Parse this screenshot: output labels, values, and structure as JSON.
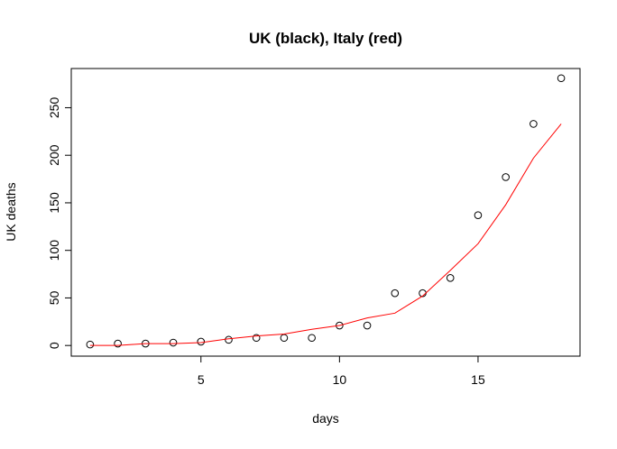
{
  "chart_data": {
    "type": "scatter",
    "title": "UK (black), Italy (red)",
    "xlabel": "days",
    "ylabel": "UK deaths",
    "xlim": [
      0.32,
      18.68
    ],
    "ylim": [
      -11.2,
      291.2
    ],
    "x_ticks": [
      5,
      10,
      15
    ],
    "y_ticks": [
      0,
      50,
      100,
      150,
      200,
      250
    ],
    "grid": false,
    "legend": "none",
    "series": [
      {
        "marker": "open-circle",
        "color": "#000000",
        "x": [
          1,
          2,
          3,
          4,
          5,
          6,
          7,
          8,
          9,
          10,
          11,
          12,
          13,
          14,
          15,
          16,
          17,
          18
        ],
        "y": [
          1,
          2,
          2,
          3,
          4,
          6,
          8,
          8,
          8,
          21,
          21,
          55,
          55,
          71,
          137,
          177,
          233,
          281
        ]
      },
      {
        "marker": "line",
        "color": "#ff0000",
        "x": [
          1,
          2,
          3,
          4,
          5,
          6,
          7,
          8,
          9,
          10,
          11,
          12,
          13,
          14,
          15,
          16,
          17,
          18
        ],
        "y": [
          0,
          0,
          2,
          2,
          3,
          7,
          10,
          12,
          17,
          21,
          29,
          34,
          52,
          79,
          107,
          148,
          197,
          233
        ]
      }
    ]
  }
}
